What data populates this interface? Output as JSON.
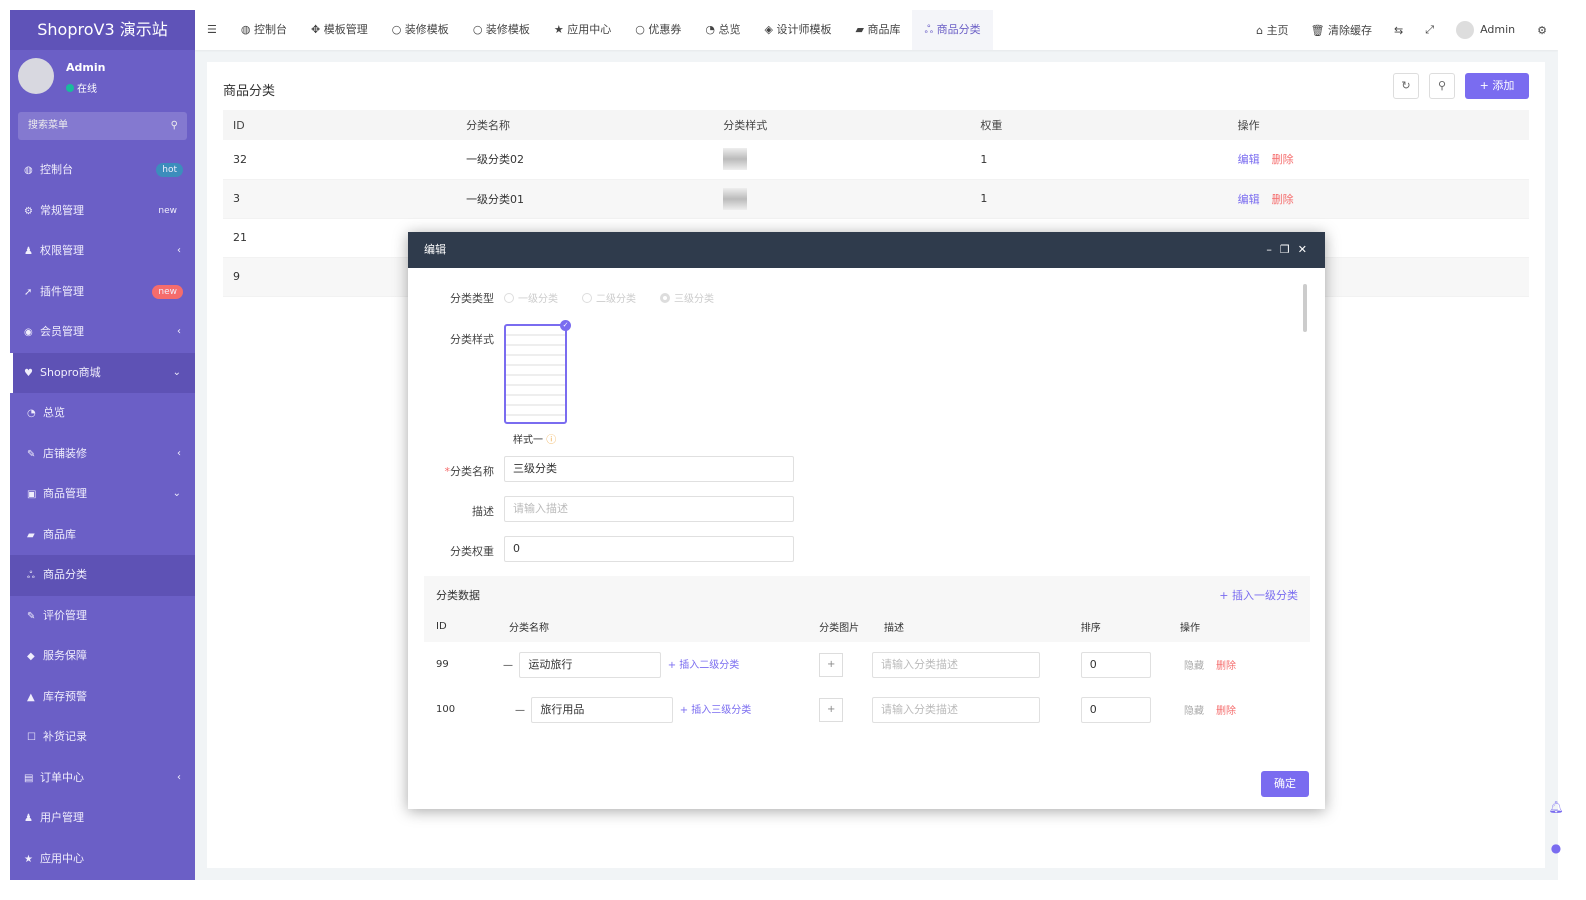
{
  "app": {
    "logo": "ShoproV3 演示站"
  },
  "user": {
    "name": "Admin",
    "status": "在线"
  },
  "sidebar": {
    "search_placeholder": "搜索菜单",
    "items": [
      {
        "label": "控制台",
        "icon": "dashboard-icon",
        "badge": "hot",
        "badge_color": "#3c8dbc"
      },
      {
        "label": "常规管理",
        "icon": "cogs-icon",
        "badge": "new"
      },
      {
        "label": "权限管理",
        "icon": "group-icon",
        "arrow": "‹"
      },
      {
        "label": "插件管理",
        "icon": "rocket-icon",
        "badge": "new",
        "badge_color": "#f56c6c"
      },
      {
        "label": "会员管理",
        "icon": "user-circle-icon",
        "arrow": "‹"
      },
      {
        "label": "Shopro商城",
        "icon": "heart-icon",
        "arrow": "⌄"
      },
      {
        "label": "总览",
        "icon": "pie-icon"
      },
      {
        "label": "店铺装修",
        "icon": "brush-icon",
        "arrow": "‹"
      },
      {
        "label": "商品管理",
        "icon": "box-icon",
        "arrow": "⌄"
      },
      {
        "label": "商品库",
        "icon": "bag-icon"
      },
      {
        "label": "商品分类",
        "icon": "sitemap-icon"
      },
      {
        "label": "评价管理",
        "icon": "edit-icon"
      },
      {
        "label": "服务保障",
        "icon": "tags-icon"
      },
      {
        "label": "库存预警",
        "icon": "warning-icon"
      },
      {
        "label": "补货记录",
        "icon": "square-icon"
      },
      {
        "label": "订单中心",
        "icon": "file-icon",
        "arrow": "‹"
      },
      {
        "label": "用户管理",
        "icon": "user-icon"
      },
      {
        "label": "应用中心",
        "icon": "star-icon"
      }
    ]
  },
  "topbar": {
    "tabs": [
      {
        "label": "控制台",
        "icon": "◍"
      },
      {
        "label": "模板管理",
        "icon": "✥"
      },
      {
        "label": "装修模板",
        "icon": "○"
      },
      {
        "label": "装修模板",
        "icon": "○"
      },
      {
        "label": "应用中心",
        "icon": "★"
      },
      {
        "label": "优惠券",
        "icon": "○"
      },
      {
        "label": "总览",
        "icon": "◔"
      },
      {
        "label": "设计师模板",
        "icon": "◈"
      },
      {
        "label": "商品库",
        "icon": "▰"
      },
      {
        "label": "商品分类",
        "icon": "ஃ"
      }
    ],
    "home": "主页",
    "clear_cache": "清除缓存",
    "admin": "Admin"
  },
  "page": {
    "title": "商品分类",
    "add": "添加",
    "columns": [
      "ID",
      "分类名称",
      "分类样式",
      "权重",
      "操作"
    ],
    "rows": [
      {
        "id": "32",
        "name": "一级分类02",
        "weight": "1"
      },
      {
        "id": "3",
        "name": "一级分类01",
        "weight": "1"
      },
      {
        "id": "21",
        "name": "",
        "weight": ""
      },
      {
        "id": "9",
        "name": "",
        "weight": ""
      }
    ],
    "edit": "编辑",
    "delete": "删除"
  },
  "modal": {
    "title": "编辑",
    "type_label": "分类类型",
    "types": [
      "一级分类",
      "二级分类",
      "三级分类"
    ],
    "selected_type": "三级分类",
    "style_label": "分类样式",
    "style_name": "样式一",
    "name_label": "分类名称",
    "name_value": "三级分类",
    "desc_label": "描述",
    "desc_placeholder": "请输入描述",
    "weight_label": "分类权重",
    "weight_value": "0",
    "data_title": "分类数据",
    "insert_level1": "+ 插入一级分类",
    "columns": [
      "ID",
      "分类名称",
      "分类图片",
      "描述",
      "排序",
      "操作"
    ],
    "rows": [
      {
        "id": "99",
        "name": "运动旅行",
        "insert": "+ 插入二级分类",
        "desc_placeholder": "请输入分类描述",
        "sort": "0",
        "hide": "隐藏",
        "delete": "删除"
      },
      {
        "id": "100",
        "name": "旅行用品",
        "insert": "+ 插入三级分类",
        "desc_placeholder": "请输入分类描述",
        "sort": "0",
        "hide": "隐藏",
        "delete": "删除"
      }
    ],
    "confirm": "确定"
  }
}
